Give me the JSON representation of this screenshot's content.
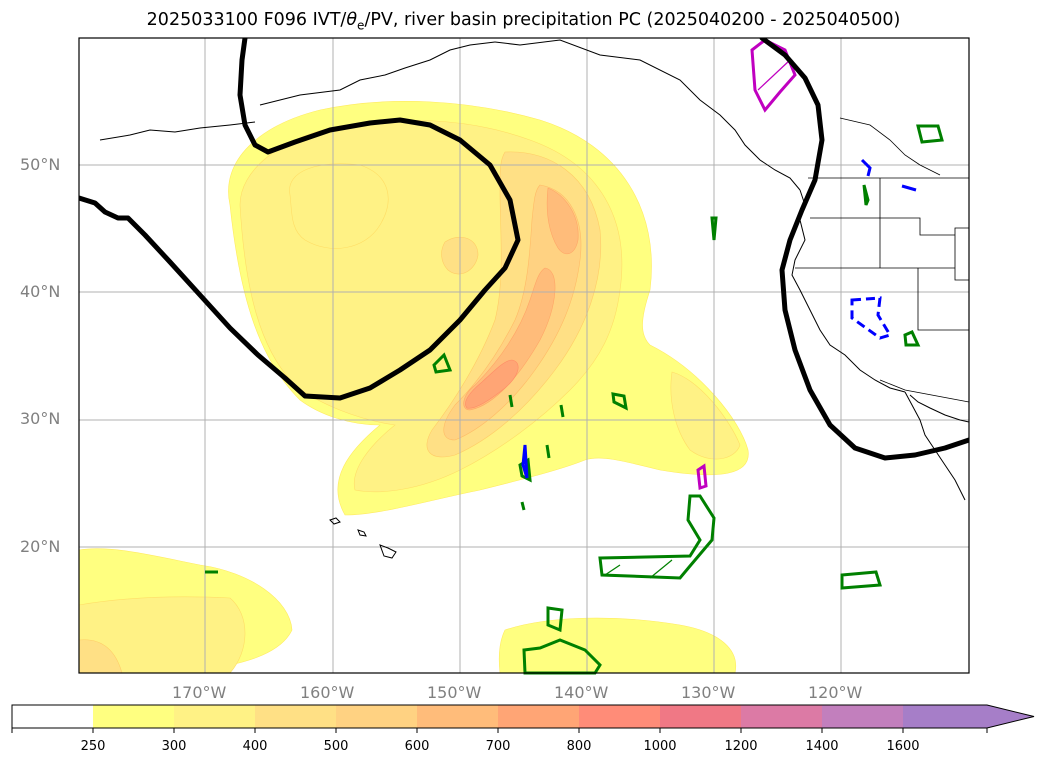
{
  "title_parts": {
    "before": "2025033100 F096 IVT/",
    "theta": "θ",
    "sub": "e",
    "after": "/PV, river basin precipitation PC (2025040200 - 2025040500)"
  },
  "map": {
    "lon_range": [
      -180,
      -110
    ],
    "lat_range": [
      10,
      60
    ],
    "lon_ticks": [
      "170°W",
      "160°W",
      "150°W",
      "140°W",
      "130°W",
      "120°W"
    ],
    "lat_ticks": [
      "50°N",
      "40°N",
      "30°N",
      "20°N"
    ],
    "grid": true
  },
  "colorbar": {
    "levels": [
      "250",
      "300",
      "400",
      "500",
      "600",
      "700",
      "800",
      "1000",
      "1200",
      "1400",
      "1600"
    ],
    "colors": [
      "#ffffff",
      "#ffff80",
      "#fff285",
      "#ffe085",
      "#ffd282",
      "#ffbc7a",
      "#ffa575",
      "#ff8c78",
      "#f07885",
      "#dc7aa5",
      "#c27fbd",
      "#a67ec8"
    ],
    "extend": "max"
  },
  "legend_colors": {
    "pv_contour": "#000000",
    "green_contour": "#008000",
    "blue_contour": "#0000ff",
    "magenta_contour": "#c000c0"
  }
}
